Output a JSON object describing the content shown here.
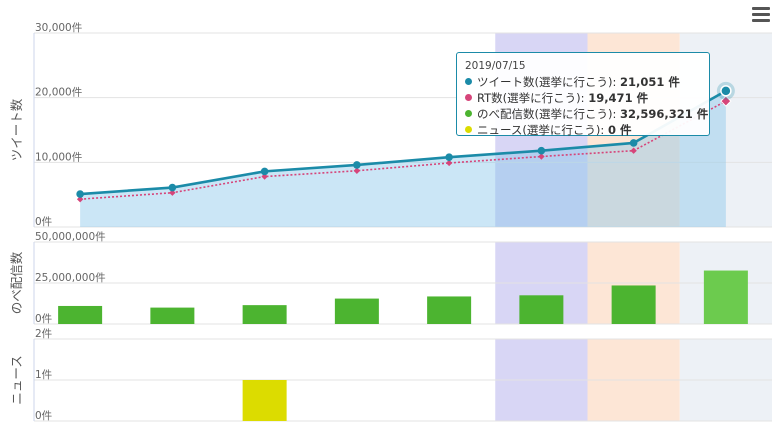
{
  "chart_data": [
    {
      "type": "line",
      "ylabel": "ツイート数",
      "ylim": [
        0,
        30000
      ],
      "y_ticks": [
        "0件",
        "10,000件",
        "20,000件",
        "30,000件"
      ],
      "x_count": 8,
      "series": [
        {
          "name": "ツイート数(選挙に行こう)",
          "color": "#1b8ba8",
          "values": [
            5100,
            6100,
            8600,
            9600,
            10800,
            11800,
            13000,
            21051
          ]
        },
        {
          "name": "RT数(選挙に行こう)",
          "color": "#d6457a",
          "values": [
            4300,
            5300,
            7800,
            8700,
            9900,
            10900,
            11800,
            19471
          ]
        }
      ]
    },
    {
      "type": "bar",
      "ylabel": "のべ配信数",
      "ylim": [
        0,
        50000000
      ],
      "y_ticks": [
        "0件",
        "25,000,000件",
        "50,000,000件"
      ],
      "series": [
        {
          "name": "のべ配信数(選挙に行こう)",
          "color": "#4cb430",
          "values": [
            11000000,
            10000000,
            11500000,
            15500000,
            16800000,
            17500000,
            23500000,
            32596321
          ]
        }
      ]
    },
    {
      "type": "bar",
      "ylabel": "ニュース",
      "ylim": [
        0,
        2
      ],
      "y_ticks": [
        "0件",
        "1件",
        "2件"
      ],
      "series": [
        {
          "name": "ニュース(選挙に行こう)",
          "color": "#dcdc00",
          "values": [
            0,
            0,
            1,
            0,
            0,
            0,
            0,
            0
          ]
        }
      ]
    }
  ],
  "tooltip": {
    "date": "2019/07/15",
    "rows": [
      {
        "label": "ツイート数(選挙に行こう): ",
        "value": "21,051 件",
        "color": "#1b8ba8"
      },
      {
        "label": "RT数(選挙に行こう): ",
        "value": "19,471 件",
        "color": "#d6457a"
      },
      {
        "label": "のべ配信数(選挙に行こう): ",
        "value": "32,596,321 件",
        "color": "#4cb430"
      },
      {
        "label": "ニュース(選挙に行こう): ",
        "value": "0 件",
        "color": "#dcdc00"
      }
    ]
  },
  "menu_icon": "hamburger-menu-icon"
}
